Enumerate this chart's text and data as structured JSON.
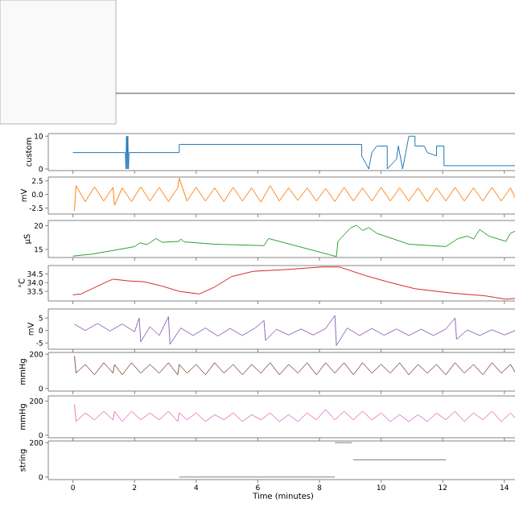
{
  "chart_data": [
    {
      "type": "line",
      "ylabel": "custom",
      "xlim": [
        -0.8,
        14.45
      ],
      "xticks": [
        0,
        2,
        4,
        6,
        8,
        10,
        12,
        14
      ],
      "ylim": [
        -0.5,
        10.8
      ],
      "yticks": [
        0,
        10
      ],
      "tick_labels": "y",
      "x": [
        0.0,
        1.7,
        1.72,
        1.74,
        1.76,
        1.78,
        1.8,
        1.82,
        3.45,
        3.45,
        9.37,
        9.37,
        9.6,
        9.7,
        9.86,
        10.0,
        10.2,
        10.2,
        10.5,
        10.56,
        10.7,
        10.8,
        10.9,
        11.1,
        11.1,
        11.4,
        11.5,
        11.8,
        11.8,
        12.04,
        12.04,
        14.45
      ],
      "series": [
        {
          "color": "#1f77b4",
          "values": [
            5,
            5,
            0,
            10,
            0,
            10,
            0,
            5,
            5,
            7.5,
            7.5,
            4,
            0,
            5,
            7,
            7,
            7,
            0,
            3,
            7,
            0,
            5,
            10,
            10,
            7,
            7,
            5,
            4,
            7,
            7,
            1,
            1
          ]
        }
      ]
    },
    {
      "type": "line",
      "ylabel": "mV",
      "xlim": [
        -0.8,
        14.45
      ],
      "xticks": [
        0,
        2,
        4,
        6,
        8,
        10,
        12,
        14
      ],
      "ylim": [
        -3.6,
        3.2
      ],
      "yticks": [
        -2.5,
        {
          "value": 0,
          "label": "0.0"
        },
        2.5
      ],
      "tick_labels": "y",
      "x": [
        0.05,
        0.1,
        0.4,
        0.7,
        1.0,
        1.3,
        1.35,
        1.6,
        1.9,
        2.2,
        2.5,
        2.8,
        3.1,
        3.4,
        3.45,
        3.7,
        4.0,
        4.3,
        4.6,
        4.9,
        5.2,
        5.5,
        5.8,
        6.1,
        6.4,
        6.7,
        7.0,
        7.3,
        7.6,
        7.9,
        8.2,
        8.5,
        8.8,
        9.1,
        9.4,
        9.7,
        10.0,
        10.3,
        10.6,
        10.9,
        11.2,
        11.5,
        11.8,
        12.1,
        12.4,
        12.7,
        13.0,
        13.3,
        13.6,
        13.9,
        14.2,
        14.4
      ],
      "series": [
        {
          "color": "#ff7f0e",
          "values": [
            -3.0,
            1.6,
            -1.3,
            1.4,
            -1.2,
            1.3,
            -2.0,
            1.2,
            -1.3,
            1.4,
            -1.2,
            1.3,
            -1.3,
            1.2,
            3.0,
            -1.2,
            1.3,
            -1.2,
            1.2,
            -1.3,
            1.3,
            -1.2,
            1.2,
            -1.4,
            1.6,
            -1.2,
            1.2,
            -1.1,
            1.2,
            -1.2,
            1.1,
            -1.3,
            1.3,
            -1.2,
            1.2,
            -1.2,
            1.3,
            -1.2,
            1.2,
            -1.2,
            1.2,
            -1.3,
            1.2,
            -1.2,
            1.3,
            -1.2,
            1.2,
            -1.2,
            1.3,
            -1.2,
            1.2,
            -1.2
          ]
        }
      ]
    },
    {
      "type": "line",
      "ylabel": "µS",
      "xlim": [
        -0.8,
        14.45
      ],
      "xticks": [
        0,
        2,
        4,
        6,
        8,
        10,
        12,
        14
      ],
      "ylim": [
        13.3,
        21.1
      ],
      "yticks": [
        15,
        20
      ],
      "tick_labels": "y",
      "x": [
        0,
        0.6,
        1.5,
        2.0,
        2.18,
        2.4,
        2.7,
        2.9,
        3.45,
        3.5,
        3.6,
        4.6,
        6.2,
        6.35,
        8.55,
        8.6,
        9.0,
        9.2,
        9.4,
        9.6,
        9.86,
        10.9,
        12.1,
        12.5,
        12.8,
        13.0,
        13.2,
        13.5,
        14.05,
        14.2,
        14.4
      ],
      "series": [
        {
          "color": "#2ca02c",
          "values": [
            13.6,
            14.0,
            15.0,
            15.6,
            16.4,
            16.0,
            17.3,
            16.5,
            16.7,
            17.2,
            16.6,
            16.1,
            15.8,
            17.3,
            13.5,
            16.7,
            19.5,
            20.1,
            19.0,
            19.6,
            18.4,
            16.1,
            15.6,
            17.3,
            17.8,
            17.2,
            19.2,
            17.8,
            16.7,
            18.4,
            19.0
          ]
        }
      ]
    },
    {
      "type": "line",
      "ylabel": "°C",
      "xlim": [
        -0.8,
        14.45
      ],
      "xticks": [
        0,
        2,
        4,
        6,
        8,
        10,
        12,
        14
      ],
      "ylim": [
        32.95,
        34.98
      ],
      "yticks": [
        33.5,
        {
          "value": 34,
          "label": "34.0"
        },
        34.5
      ],
      "tick_labels": "y",
      "x": [
        0,
        0.26,
        1.1,
        1.3,
        1.8,
        2.3,
        2.9,
        3.45,
        4.1,
        4.6,
        5.15,
        5.85,
        6.9,
        8.1,
        8.65,
        9.5,
        10.2,
        11.1,
        12.3,
        13.35,
        14.05,
        14.4
      ],
      "series": [
        {
          "color": "#d62728",
          "values": [
            33.3,
            33.35,
            34.05,
            34.2,
            34.1,
            34.05,
            33.8,
            33.5,
            33.35,
            33.75,
            34.35,
            34.65,
            34.75,
            34.9,
            34.9,
            34.4,
            34.05,
            33.65,
            33.4,
            33.25,
            33.05,
            33.1
          ]
        }
      ]
    },
    {
      "type": "line",
      "ylabel": "mV",
      "xlim": [
        -0.8,
        14.45
      ],
      "xticks": [
        0,
        2,
        4,
        6,
        8,
        10,
        12,
        14
      ],
      "ylim": [
        -7.5,
        8.6
      ],
      "yticks": [
        -5,
        0,
        5
      ],
      "tick_labels": "y",
      "x": [
        0.05,
        0.4,
        0.8,
        1.2,
        1.6,
        2.0,
        2.15,
        2.2,
        2.5,
        2.8,
        3.1,
        3.15,
        3.5,
        3.9,
        4.3,
        4.7,
        5.1,
        5.5,
        5.9,
        6.2,
        6.25,
        6.6,
        7.0,
        7.4,
        7.8,
        8.2,
        8.5,
        8.55,
        8.9,
        9.3,
        9.7,
        10.1,
        10.5,
        10.9,
        11.3,
        11.7,
        12.1,
        12.4,
        12.45,
        12.8,
        13.2,
        13.6,
        14.0,
        14.4
      ],
      "series": [
        {
          "color": "#9467bd",
          "values": [
            2.5,
            0.0,
            2.8,
            -0.2,
            2.6,
            -0.5,
            5.0,
            -4.5,
            1.5,
            -2.0,
            5.5,
            -5.5,
            1.0,
            -2.0,
            1.0,
            -2.2,
            0.8,
            -2.0,
            0.9,
            4.0,
            -4.0,
            0.5,
            -1.8,
            0.6,
            -1.8,
            0.8,
            6.0,
            -6.0,
            1.0,
            -2.0,
            0.8,
            -1.9,
            0.6,
            -2.0,
            0.5,
            -2.0,
            0.6,
            5.0,
            -3.5,
            0.2,
            -2.0,
            0.3,
            -1.8,
            0.2
          ]
        }
      ]
    },
    {
      "type": "line",
      "ylabel": "mmHg",
      "xlim": [
        -0.8,
        14.45
      ],
      "xticks": [
        0,
        2,
        4,
        6,
        8,
        10,
        12,
        14
      ],
      "ylim": [
        -15,
        210
      ],
      "yticks": [
        0,
        200
      ],
      "tick_labels": "y",
      "x": [
        0.05,
        0.1,
        0.4,
        0.7,
        1.0,
        1.3,
        1.35,
        1.6,
        1.9,
        2.2,
        2.5,
        2.8,
        3.1,
        3.4,
        3.45,
        3.7,
        4.0,
        4.3,
        4.6,
        4.9,
        5.2,
        5.5,
        5.8,
        6.1,
        6.4,
        6.7,
        7.0,
        7.3,
        7.6,
        7.9,
        8.2,
        8.5,
        8.8,
        9.1,
        9.4,
        9.7,
        10.0,
        10.3,
        10.6,
        10.9,
        11.2,
        11.5,
        11.8,
        12.1,
        12.4,
        12.7,
        13.0,
        13.3,
        13.6,
        13.9,
        14.2,
        14.4
      ],
      "series": [
        {
          "color": "#8c564b",
          "values": [
            190,
            90,
            140,
            80,
            150,
            90,
            140,
            80,
            150,
            90,
            140,
            90,
            150,
            80,
            140,
            90,
            140,
            80,
            150,
            90,
            140,
            80,
            140,
            90,
            150,
            80,
            140,
            90,
            150,
            80,
            150,
            90,
            150,
            80,
            150,
            90,
            140,
            90,
            150,
            80,
            140,
            90,
            140,
            80,
            150,
            90,
            140,
            80,
            150,
            90,
            140,
            80
          ]
        }
      ]
    },
    {
      "type": "line",
      "ylabel": "mmHg",
      "xlim": [
        -0.8,
        14.45
      ],
      "xticks": [
        0,
        2,
        4,
        6,
        8,
        10,
        12,
        14
      ],
      "ylim": [
        -15,
        230
      ],
      "yticks": [
        0,
        200
      ],
      "tick_labels": "y",
      "x": [
        0.05,
        0.1,
        0.4,
        0.7,
        1.0,
        1.3,
        1.35,
        1.6,
        1.9,
        2.2,
        2.5,
        2.8,
        3.1,
        3.4,
        3.45,
        3.7,
        4.0,
        4.3,
        4.6,
        4.9,
        5.2,
        5.5,
        5.8,
        6.1,
        6.4,
        6.7,
        7.0,
        7.3,
        7.6,
        7.9,
        8.2,
        8.5,
        8.8,
        9.1,
        9.4,
        9.7,
        10.0,
        10.3,
        10.6,
        10.9,
        11.2,
        11.5,
        11.8,
        12.1,
        12.4,
        12.7,
        13.0,
        13.3,
        13.6,
        13.9,
        14.2,
        14.4
      ],
      "series": [
        {
          "color": "#e377c2",
          "values": [
            180,
            80,
            130,
            90,
            140,
            90,
            140,
            80,
            140,
            90,
            130,
            90,
            140,
            80,
            130,
            90,
            130,
            80,
            120,
            90,
            130,
            80,
            120,
            90,
            130,
            80,
            120,
            80,
            130,
            90,
            150,
            90,
            140,
            90,
            140,
            90,
            130,
            80,
            120,
            80,
            120,
            80,
            130,
            90,
            140,
            80,
            130,
            90,
            140,
            80,
            130,
            90
          ]
        }
      ]
    },
    {
      "type": "line",
      "ylabel": "string",
      "xlabel": "Time (minutes)",
      "xlim": [
        -0.8,
        14.45
      ],
      "xticks": [
        0,
        2,
        4,
        6,
        8,
        10,
        12,
        14
      ],
      "ylim": [
        -15,
        210
      ],
      "yticks": [
        0,
        200
      ],
      "series": [
        {
          "color": "#7f7f7f",
          "x": [
            3.45,
            8.5
          ],
          "values": [
            0,
            0
          ]
        },
        {
          "color": "#7f7f7f",
          "x": [
            8.5,
            9.05
          ],
          "values": [
            200,
            200
          ]
        },
        {
          "color": "#7f7f7f",
          "x": [
            9.1,
            12.1
          ],
          "values": [
            100,
            100
          ]
        }
      ]
    }
  ]
}
